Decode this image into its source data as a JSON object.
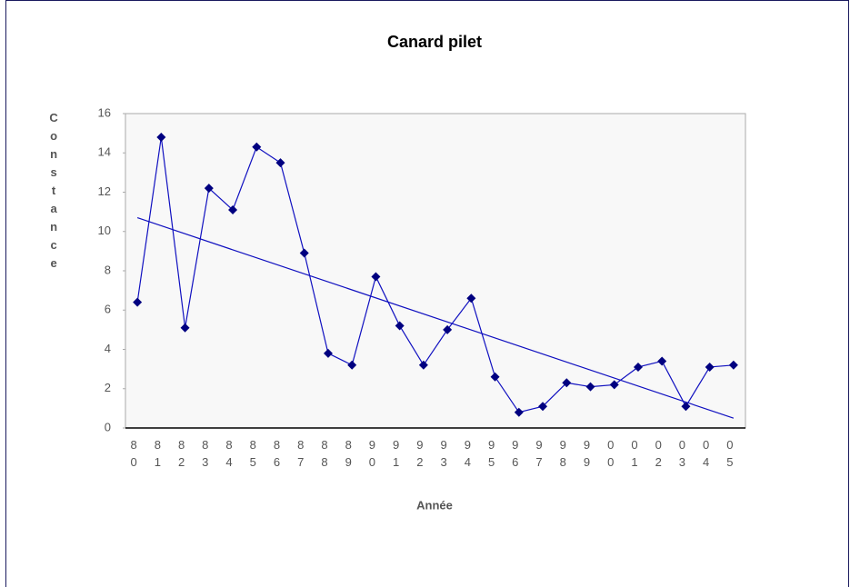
{
  "chart_data": {
    "type": "line",
    "title": "Canard pilet",
    "x_label": "Année",
    "y_label": "Constance",
    "categories": [
      "80",
      "81",
      "82",
      "83",
      "84",
      "85",
      "86",
      "87",
      "88",
      "89",
      "90",
      "91",
      "92",
      "93",
      "94",
      "95",
      "96",
      "97",
      "98",
      "99",
      "00",
      "01",
      "02",
      "03",
      "04",
      "05"
    ],
    "series": [
      {
        "color": "#1010c0",
        "marker_color": "#000080",
        "values": [
          6.4,
          14.8,
          5.1,
          12.2,
          11.1,
          14.3,
          13.5,
          8.9,
          3.8,
          3.2,
          7.7,
          5.2,
          3.2,
          5.0,
          6.6,
          2.6,
          0.8,
          1.1,
          2.3,
          2.1,
          2.2,
          3.1,
          3.4,
          1.1,
          3.1,
          3.2
        ]
      }
    ],
    "trendline": {
      "color": "#1010c0",
      "values": [
        10.7,
        0.5
      ]
    },
    "ylim": [
      0,
      16
    ],
    "yticks": [
      0,
      2,
      4,
      6,
      8,
      10,
      12,
      14,
      16
    ],
    "grid": false
  }
}
